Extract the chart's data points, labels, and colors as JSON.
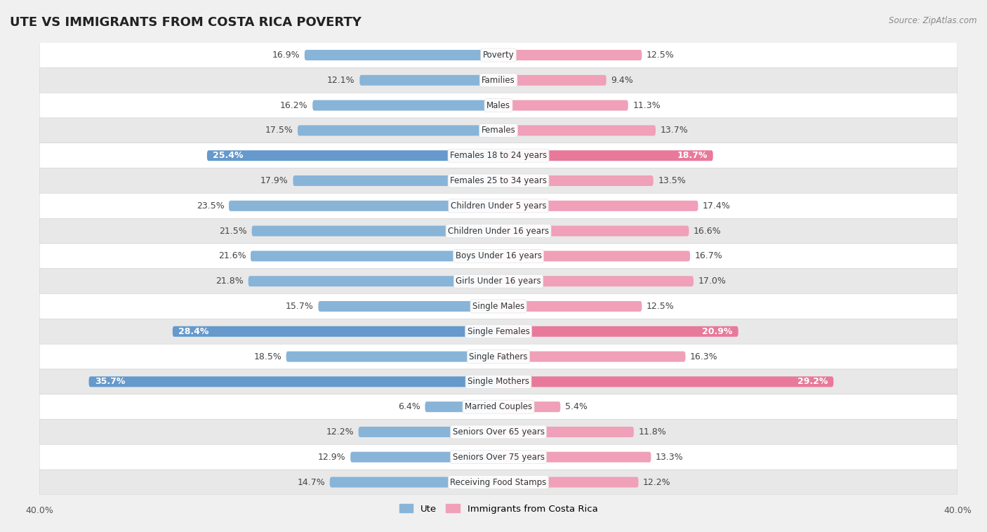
{
  "title": "UTE VS IMMIGRANTS FROM COSTA RICA POVERTY",
  "source": "Source: ZipAtlas.com",
  "categories": [
    "Poverty",
    "Families",
    "Males",
    "Females",
    "Females 18 to 24 years",
    "Females 25 to 34 years",
    "Children Under 5 years",
    "Children Under 16 years",
    "Boys Under 16 years",
    "Girls Under 16 years",
    "Single Males",
    "Single Females",
    "Single Fathers",
    "Single Mothers",
    "Married Couples",
    "Seniors Over 65 years",
    "Seniors Over 75 years",
    "Receiving Food Stamps"
  ],
  "ute_values": [
    16.9,
    12.1,
    16.2,
    17.5,
    25.4,
    17.9,
    23.5,
    21.5,
    21.6,
    21.8,
    15.7,
    28.4,
    18.5,
    35.7,
    6.4,
    12.2,
    12.9,
    14.7
  ],
  "cr_values": [
    12.5,
    9.4,
    11.3,
    13.7,
    18.7,
    13.5,
    17.4,
    16.6,
    16.7,
    17.0,
    12.5,
    20.9,
    16.3,
    29.2,
    5.4,
    11.8,
    13.3,
    12.2
  ],
  "ute_color": "#88b4d8",
  "cr_color": "#f0a0b8",
  "ute_highlight_color": "#6699cc",
  "cr_highlight_color": "#e8799a",
  "highlight_rows": [
    4,
    11,
    13
  ],
  "xlim": 40.0,
  "bar_height": 0.42,
  "bg_color": "#f0f0f0",
  "row_color_light": "#ffffff",
  "row_color_dark": "#e8e8e8",
  "legend_ute": "Ute",
  "legend_cr": "Immigrants from Costa Rica",
  "title_fontsize": 13,
  "label_fontsize": 9,
  "cat_fontsize": 8.5
}
